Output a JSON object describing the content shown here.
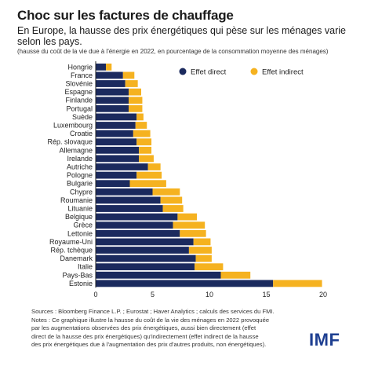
{
  "header": {
    "title": "Choc sur les factures de chauffage",
    "subtitle": "En Europe, la hausse des prix énergétiques qui pèse sur les ménages varie selon les pays.",
    "note": "(hausse du coût de la vie due à l'énergie en 2022, en pourcentage de la consommation moyenne des ménages)"
  },
  "footer": {
    "lines": [
      "Sources : Bloomberg Finance L.P. ; Eurostat ; Haver Analytics ; calculs des services du FMI.",
      "Notes : Ce graphique illustre la hausse du coût de la vie des ménages en 2022 provoquée",
      "par les augmentations observées des prix énergétiques, aussi bien directement (effet",
      "direct de la hausse des prix énergétiques) qu'indirectement (effet indirect de la hausse",
      "des prix énergétiques due à l'augmentation des prix d'autres produits, non énergétiques)."
    ],
    "logo": "IMF"
  },
  "chart_data": {
    "type": "bar",
    "orientation": "horizontal",
    "stacked": true,
    "categories": [
      "Hongrie",
      "France",
      "Slovénie",
      "Espagne",
      "Finlande",
      "Portugal",
      "Suède",
      "Luxembourg",
      "Croatie",
      "Rép. slovaque",
      "Allemagne",
      "Irelande",
      "Autriche",
      "Pologne",
      "Bulgarie",
      "Chypre",
      "Roumanie",
      "Lituanie",
      "Belgique",
      "Grèce",
      "Lettonie",
      "Royaume-Uni",
      "Rép. tchèque",
      "Danemark",
      "Italie",
      "Pays-Bas",
      "Estonie"
    ],
    "series": [
      {
        "name": "Effet direct",
        "color": "#1b2a5e",
        "values": [
          0.9,
          2.4,
          2.6,
          2.9,
          2.9,
          2.9,
          3.6,
          3.5,
          3.3,
          3.6,
          3.8,
          3.8,
          4.6,
          3.6,
          3.0,
          5.0,
          5.7,
          5.9,
          7.2,
          6.8,
          7.4,
          8.6,
          8.2,
          8.8,
          8.7,
          11.0,
          15.6
        ]
      },
      {
        "name": "Effet indirect",
        "color": "#f5b220",
        "values": [
          0.5,
          1.0,
          1.1,
          1.1,
          1.2,
          1.2,
          0.6,
          1.0,
          1.5,
          1.3,
          1.1,
          1.3,
          1.1,
          2.2,
          3.2,
          2.4,
          1.9,
          1.8,
          1.7,
          2.8,
          2.3,
          1.5,
          2.0,
          1.4,
          2.5,
          2.6,
          4.3
        ]
      }
    ],
    "xlim": [
      0,
      20
    ],
    "xticks": [
      "0",
      "5",
      "10",
      "15",
      "20"
    ],
    "grid": false,
    "legend_position": "top-right"
  }
}
